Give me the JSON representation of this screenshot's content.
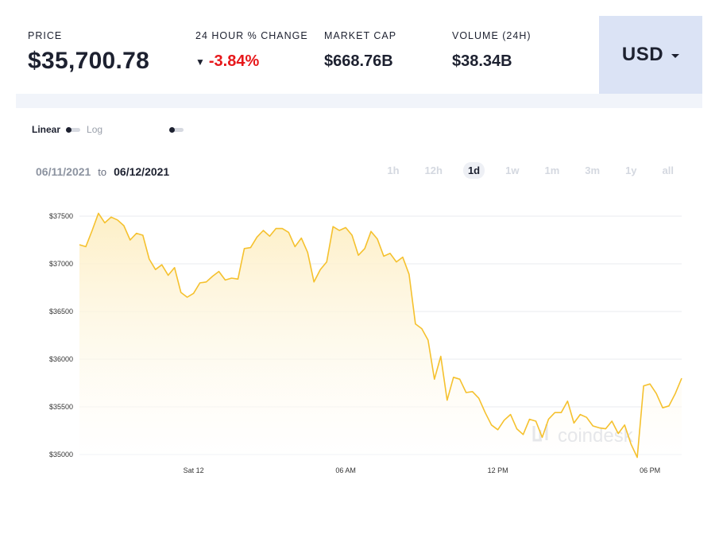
{
  "stats": {
    "price": {
      "label": "PRICE",
      "value": "$35,700.78"
    },
    "change": {
      "label": "24 HOUR % CHANGE",
      "value": "-3.84%"
    },
    "market_cap": {
      "label": "MARKET CAP",
      "value": "$668.76B"
    },
    "volume": {
      "label": "VOLUME (24H)",
      "value": "$38.34B"
    }
  },
  "currency": {
    "label": "USD"
  },
  "scale": {
    "linear": "Linear",
    "log": "Log"
  },
  "date_range": {
    "from": "06/11/2021",
    "to_word": "to",
    "to": "06/12/2021"
  },
  "ranges": [
    {
      "label": "1h",
      "active": false
    },
    {
      "label": "12h",
      "active": false
    },
    {
      "label": "1d",
      "active": true
    },
    {
      "label": "1w",
      "active": false
    },
    {
      "label": "1m",
      "active": false
    },
    {
      "label": "3m",
      "active": false
    },
    {
      "label": "1y",
      "active": false
    },
    {
      "label": "all",
      "active": false
    }
  ],
  "watermark": "coindesk",
  "colors": {
    "line": "#f5c12e",
    "fill_top": "#fdefc6",
    "negative": "#e7181b",
    "currency_bg": "#dbe3f5"
  },
  "chart_data": {
    "type": "area",
    "title": "",
    "xlabel": "",
    "ylabel": "",
    "ylim": [
      34950,
      37550
    ],
    "yticks": [
      35000,
      35500,
      36000,
      36500,
      37000,
      37500
    ],
    "ytick_labels": [
      "$35000",
      "$35500",
      "$36000",
      "$36500",
      "$37000",
      "$37500"
    ],
    "xtick_labels": [
      {
        "label": "Sat 12",
        "index": 18
      },
      {
        "label": "06 AM",
        "index": 42
      },
      {
        "label": "12 PM",
        "index": 66
      },
      {
        "label": "06 PM",
        "index": 90
      }
    ],
    "series": [
      {
        "values": [
          37200,
          37180,
          37350,
          37530,
          37430,
          37490,
          37460,
          37400,
          37250,
          37320,
          37300,
          37050,
          36940,
          36990,
          36880,
          36960,
          36700,
          36650,
          36690,
          36800,
          36810,
          36870,
          36920,
          36830,
          36850,
          36840,
          37160,
          37170,
          37280,
          37350,
          37290,
          37370,
          37370,
          37330,
          37180,
          37270,
          37120,
          36810,
          36940,
          37020,
          37390,
          37350,
          37380,
          37300,
          37090,
          37160,
          37340,
          37260,
          37080,
          37110,
          37020,
          37070,
          36890,
          36370,
          36320,
          36200,
          35790,
          36030,
          35570,
          35810,
          35790,
          35650,
          35660,
          35590,
          35440,
          35310,
          35260,
          35360,
          35420,
          35270,
          35210,
          35370,
          35350,
          35180,
          35370,
          35440,
          35440,
          35560,
          35330,
          35420,
          35390,
          35300,
          35280,
          35270,
          35350,
          35220,
          35310,
          35110,
          34970,
          35720,
          35740,
          35640,
          35490,
          35510,
          35640,
          35800
        ]
      }
    ],
    "grid": true
  }
}
